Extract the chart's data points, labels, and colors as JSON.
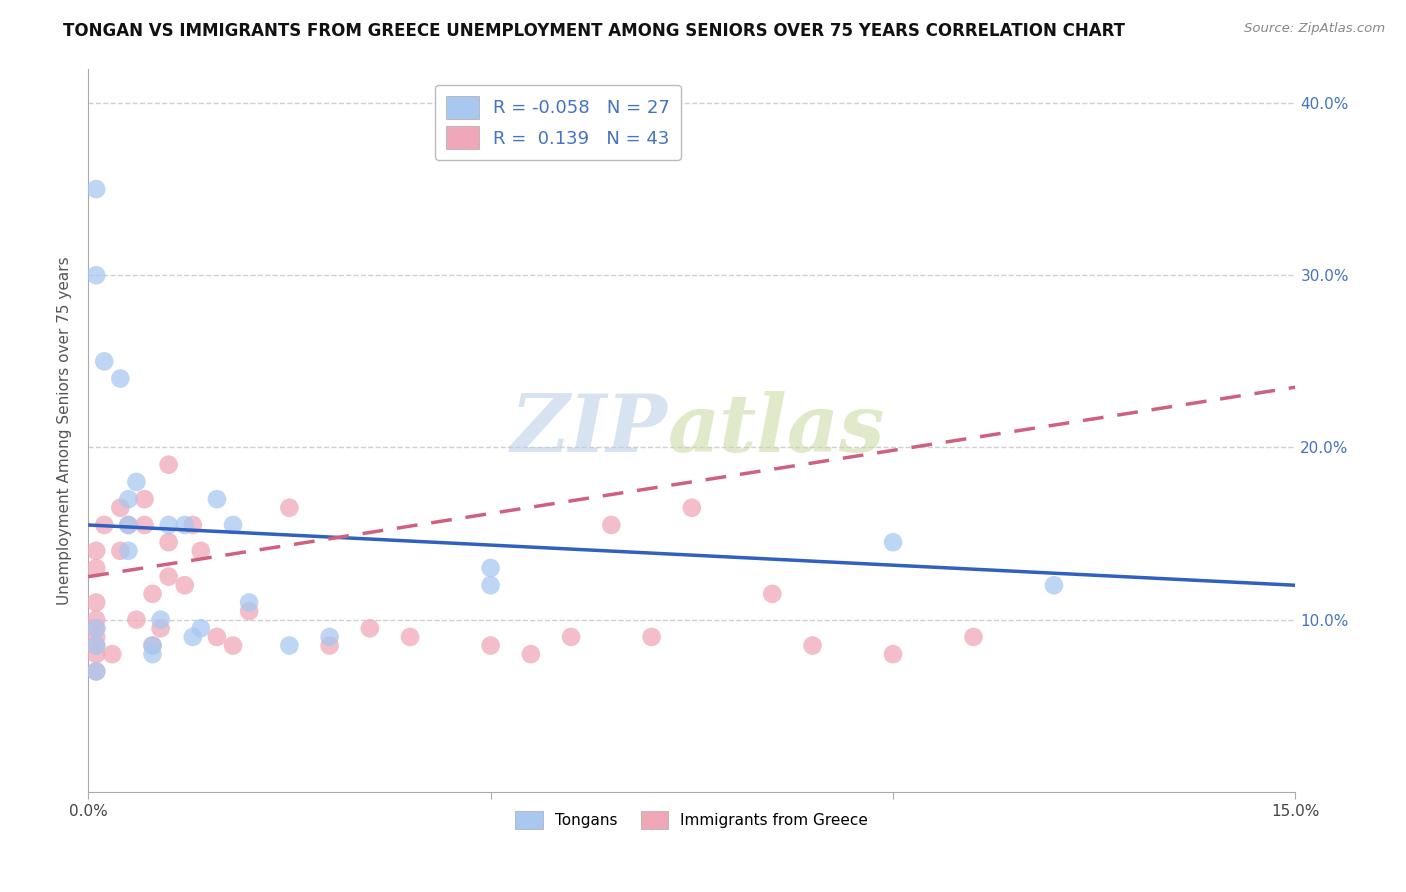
{
  "title": "TONGAN VS IMMIGRANTS FROM GREECE UNEMPLOYMENT AMONG SENIORS OVER 75 YEARS CORRELATION CHART",
  "source": "Source: ZipAtlas.com",
  "ylabel": "Unemployment Among Seniors over 75 years",
  "xlim": [
    0.0,
    0.15
  ],
  "ylim": [
    0.0,
    0.42
  ],
  "x_ticks": [
    0.0,
    0.05,
    0.1,
    0.15
  ],
  "x_tick_labels": [
    "0.0%",
    "",
    "",
    "15.0%"
  ],
  "y_ticks": [
    0.0,
    0.1,
    0.2,
    0.3,
    0.4
  ],
  "y_tick_labels_right": [
    "",
    "10.0%",
    "20.0%",
    "30.0%",
    "40.0%"
  ],
  "grid_color": "#d0d0d0",
  "background_color": "#ffffff",
  "tongan_color": "#a8c8f0",
  "greece_color": "#f0a8b8",
  "tongan_line_color": "#3060c0",
  "greece_line_color": "#d06080",
  "tongan_R": -0.058,
  "tongan_N": 27,
  "greece_R": 0.139,
  "greece_N": 43,
  "legend_label_1": "Tongans",
  "legend_label_2": "Immigrants from Greece",
  "watermark_zip": "ZIP",
  "watermark_atlas": "atlas",
  "tongan_x": [
    0.001,
    0.001,
    0.001,
    0.001,
    0.001,
    0.002,
    0.004,
    0.005,
    0.005,
    0.005,
    0.006,
    0.008,
    0.008,
    0.009,
    0.01,
    0.012,
    0.013,
    0.014,
    0.016,
    0.018,
    0.02,
    0.025,
    0.03,
    0.05,
    0.05,
    0.1,
    0.12
  ],
  "tongan_y": [
    0.35,
    0.3,
    0.085,
    0.095,
    0.07,
    0.25,
    0.24,
    0.17,
    0.155,
    0.14,
    0.18,
    0.085,
    0.08,
    0.1,
    0.155,
    0.155,
    0.09,
    0.095,
    0.17,
    0.155,
    0.11,
    0.085,
    0.09,
    0.13,
    0.12,
    0.145,
    0.12
  ],
  "greece_x": [
    0.001,
    0.001,
    0.001,
    0.001,
    0.001,
    0.001,
    0.001,
    0.001,
    0.001,
    0.002,
    0.003,
    0.004,
    0.004,
    0.005,
    0.006,
    0.007,
    0.007,
    0.008,
    0.008,
    0.009,
    0.01,
    0.01,
    0.01,
    0.012,
    0.013,
    0.014,
    0.016,
    0.018,
    0.02,
    0.025,
    0.03,
    0.035,
    0.04,
    0.05,
    0.055,
    0.06,
    0.065,
    0.07,
    0.075,
    0.085,
    0.09,
    0.1,
    0.11
  ],
  "greece_y": [
    0.07,
    0.08,
    0.085,
    0.09,
    0.095,
    0.1,
    0.11,
    0.13,
    0.14,
    0.155,
    0.08,
    0.165,
    0.14,
    0.155,
    0.1,
    0.155,
    0.17,
    0.085,
    0.115,
    0.095,
    0.125,
    0.145,
    0.19,
    0.12,
    0.155,
    0.14,
    0.09,
    0.085,
    0.105,
    0.165,
    0.085,
    0.095,
    0.09,
    0.085,
    0.08,
    0.09,
    0.155,
    0.09,
    0.165,
    0.115,
    0.085,
    0.08,
    0.09
  ]
}
